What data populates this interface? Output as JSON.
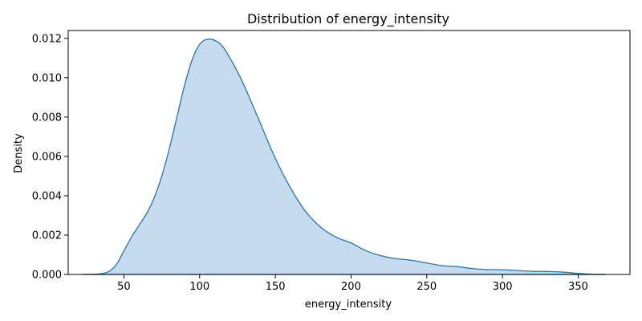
{
  "chart_data": {
    "type": "area",
    "title": "Distribution of energy_intensity",
    "xlabel": "energy_intensity",
    "ylabel": "Density",
    "xlim": [
      13.2,
      384.2
    ],
    "ylim": [
      0,
      0.0124
    ],
    "xticks": [
      "50",
      "100",
      "150",
      "200",
      "250",
      "300",
      "350"
    ],
    "xtick_values": [
      50,
      100,
      150,
      200,
      250,
      300,
      350
    ],
    "yticks": [
      "0.000",
      "0.002",
      "0.004",
      "0.006",
      "0.008",
      "0.010",
      "0.012"
    ],
    "ytick_values": [
      0,
      0.002,
      0.004,
      0.006,
      0.008,
      0.01,
      0.012
    ],
    "grid": false,
    "legend": "none",
    "colors": {
      "line": "#1f77b4",
      "fill": "#c6dbed"
    },
    "series": [
      {
        "x": [
          23.0,
          30.0,
          35.0,
          40.0,
          45.0,
          50.0,
          55.0,
          60.0,
          65.0,
          70.0,
          75.0,
          80.0,
          85.0,
          90.0,
          95.0,
          100.0,
          105.0,
          110.0,
          115.0,
          120.0,
          125.0,
          130.0,
          140.0,
          150.0,
          160.0,
          170.0,
          180.0,
          190.0,
          200.0,
          210.0,
          220.0,
          230.0,
          240.0,
          250.0,
          260.0,
          270.0,
          280.0,
          290.0,
          300.0,
          310.0,
          320.0,
          330.0,
          340.0,
          350.0,
          360.0,
          368.0
        ],
        "values": [
          0.0,
          1e-05,
          4e-05,
          0.00015,
          0.0005,
          0.0012,
          0.0019,
          0.0025,
          0.0031,
          0.0039,
          0.005,
          0.0064,
          0.008,
          0.0096,
          0.0109,
          0.0117,
          0.01195,
          0.0119,
          0.0116,
          0.011,
          0.0103,
          0.0095,
          0.0077,
          0.0059,
          0.0044,
          0.0032,
          0.0024,
          0.0019,
          0.0016,
          0.0012,
          0.00095,
          0.0008,
          0.00072,
          0.00058,
          0.00045,
          0.0004,
          0.0003,
          0.00025,
          0.00024,
          0.0002,
          0.00016,
          0.00015,
          0.00012,
          5e-05,
          1e-05,
          0.0
        ]
      }
    ]
  }
}
